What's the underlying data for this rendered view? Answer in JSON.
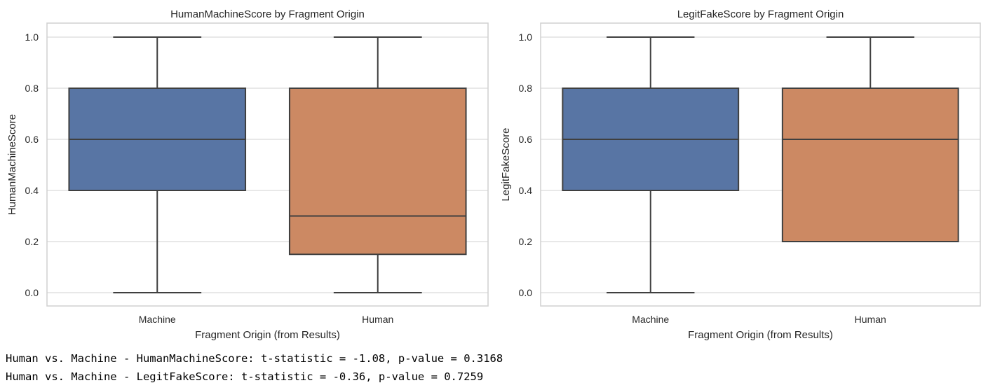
{
  "chart_data": [
    {
      "type": "box",
      "title": "HumanMachineScore by Fragment Origin",
      "xlabel": "Fragment Origin (from Results)",
      "ylabel": "HumanMachineScore",
      "ylim": [
        -0.05,
        1.05
      ],
      "yticks": [
        "0.0",
        "0.2",
        "0.4",
        "0.6",
        "0.8",
        "1.0"
      ],
      "grid": true,
      "categories": [
        "Machine",
        "Human"
      ],
      "boxes": [
        {
          "category": "Machine",
          "whisker_low": 0.0,
          "q1": 0.4,
          "median": 0.6,
          "q3": 0.8,
          "whisker_high": 1.0,
          "color": "#5875a4"
        },
        {
          "category": "Human",
          "whisker_low": 0.0,
          "q1": 0.15,
          "median": 0.3,
          "q3": 0.8,
          "whisker_high": 1.0,
          "color": "#cc8963"
        }
      ]
    },
    {
      "type": "box",
      "title": "LegitFakeScore by Fragment Origin",
      "xlabel": "Fragment Origin (from Results)",
      "ylabel": "LegitFakeScore",
      "ylim": [
        -0.05,
        1.05
      ],
      "yticks": [
        "0.0",
        "0.2",
        "0.4",
        "0.6",
        "0.8",
        "1.0"
      ],
      "grid": true,
      "categories": [
        "Machine",
        "Human"
      ],
      "boxes": [
        {
          "category": "Machine",
          "whisker_low": 0.0,
          "q1": 0.4,
          "median": 0.6,
          "q3": 0.8,
          "whisker_high": 1.0,
          "color": "#5875a4"
        },
        {
          "category": "Human",
          "whisker_low": 0.2,
          "q1": 0.2,
          "median": 0.6,
          "q3": 0.8,
          "whisker_high": 1.0,
          "color": "#cc8963"
        }
      ]
    }
  ],
  "output": {
    "line1": "Human vs. Machine - HumanMachineScore: t-statistic = -1.08, p-value = 0.3168",
    "line2": "Human vs. Machine - LegitFakeScore: t-statistic = -0.36, p-value = 0.7259"
  }
}
